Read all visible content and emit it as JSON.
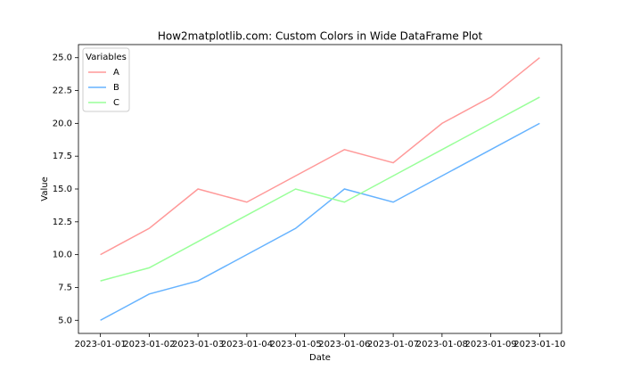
{
  "chart_data": {
    "type": "line",
    "title": "How2matplotlib.com: Custom Colors in Wide DataFrame Plot",
    "x_label": "Date",
    "y_label": "Value",
    "categories": [
      "2023-01-01",
      "2023-01-02",
      "2023-01-03",
      "2023-01-04",
      "2023-01-05",
      "2023-01-06",
      "2023-01-07",
      "2023-01-08",
      "2023-01-09",
      "2023-01-10"
    ],
    "series": [
      {
        "name": "A",
        "color": "#ff9999",
        "values": [
          10,
          12,
          15,
          14,
          16,
          18,
          17,
          20,
          22,
          25
        ]
      },
      {
        "name": "B",
        "color": "#66b3ff",
        "values": [
          5,
          7,
          8,
          10,
          12,
          15,
          14,
          16,
          18,
          20
        ]
      },
      {
        "name": "C",
        "color": "#99ff99",
        "values": [
          8,
          9,
          11,
          13,
          15,
          14,
          16,
          18,
          20,
          22
        ]
      }
    ],
    "ylim": [
      4,
      26
    ],
    "yticks": [
      {
        "value": 5,
        "label": "5.0"
      },
      {
        "value": 7.5,
        "label": "7.5"
      },
      {
        "value": 10,
        "label": "10.0"
      },
      {
        "value": 12.5,
        "label": "12.5"
      },
      {
        "value": 15,
        "label": "15.0"
      },
      {
        "value": 17.5,
        "label": "17.5"
      },
      {
        "value": 20,
        "label": "20.0"
      },
      {
        "value": 22.5,
        "label": "22.5"
      },
      {
        "value": 25,
        "label": "25.0"
      }
    ],
    "legend_title": "Variables",
    "legend": "upper left",
    "grid": false
  }
}
